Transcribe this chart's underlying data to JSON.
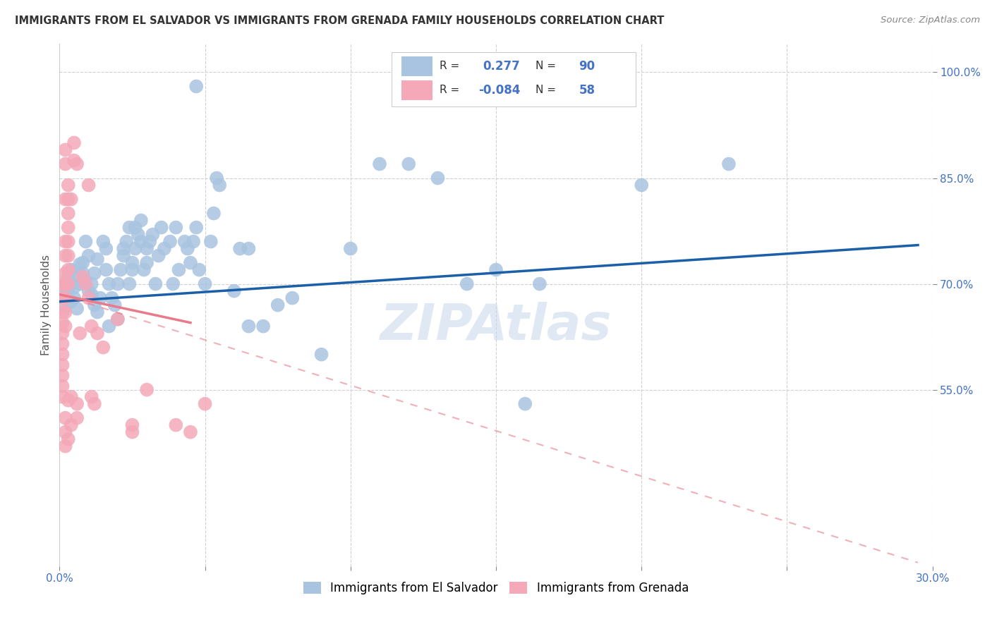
{
  "title": "IMMIGRANTS FROM EL SALVADOR VS IMMIGRANTS FROM GRENADA FAMILY HOUSEHOLDS CORRELATION CHART",
  "source": "Source: ZipAtlas.com",
  "ylabel": "Family Households",
  "xlim": [
    0.0,
    0.3
  ],
  "ylim": [
    0.3,
    1.04
  ],
  "el_salvador_color": "#a8c4e0",
  "el_salvador_line_color": "#1a5fa8",
  "grenada_color": "#f4a8b8",
  "grenada_line_color": "#e87a8a",
  "watermark": "ZIPAtlas",
  "background_color": "#ffffff",
  "grid_color": "#d0d0d0",
  "el_salvador_points": [
    [
      0.0015,
      0.685
    ],
    [
      0.002,
      0.668
    ],
    [
      0.002,
      0.7
    ],
    [
      0.003,
      0.71
    ],
    [
      0.003,
      0.693
    ],
    [
      0.004,
      0.72
    ],
    [
      0.004,
      0.675
    ],
    [
      0.005,
      0.695
    ],
    [
      0.005,
      0.68
    ],
    [
      0.006,
      0.665
    ],
    [
      0.006,
      0.71
    ],
    [
      0.007,
      0.7
    ],
    [
      0.007,
      0.728
    ],
    [
      0.008,
      0.715
    ],
    [
      0.008,
      0.73
    ],
    [
      0.009,
      0.705
    ],
    [
      0.009,
      0.76
    ],
    [
      0.01,
      0.74
    ],
    [
      0.01,
      0.69
    ],
    [
      0.011,
      0.685
    ],
    [
      0.011,
      0.7
    ],
    [
      0.012,
      0.715
    ],
    [
      0.012,
      0.67
    ],
    [
      0.013,
      0.735
    ],
    [
      0.013,
      0.66
    ],
    [
      0.014,
      0.68
    ],
    [
      0.015,
      0.76
    ],
    [
      0.016,
      0.72
    ],
    [
      0.016,
      0.75
    ],
    [
      0.017,
      0.7
    ],
    [
      0.017,
      0.64
    ],
    [
      0.018,
      0.68
    ],
    [
      0.019,
      0.67
    ],
    [
      0.02,
      0.65
    ],
    [
      0.02,
      0.7
    ],
    [
      0.021,
      0.72
    ],
    [
      0.022,
      0.74
    ],
    [
      0.022,
      0.75
    ],
    [
      0.023,
      0.76
    ],
    [
      0.024,
      0.78
    ],
    [
      0.024,
      0.7
    ],
    [
      0.025,
      0.73
    ],
    [
      0.025,
      0.72
    ],
    [
      0.026,
      0.75
    ],
    [
      0.026,
      0.78
    ],
    [
      0.027,
      0.77
    ],
    [
      0.028,
      0.76
    ],
    [
      0.028,
      0.79
    ],
    [
      0.029,
      0.72
    ],
    [
      0.03,
      0.73
    ],
    [
      0.03,
      0.75
    ],
    [
      0.031,
      0.76
    ],
    [
      0.032,
      0.77
    ],
    [
      0.033,
      0.7
    ],
    [
      0.034,
      0.74
    ],
    [
      0.035,
      0.78
    ],
    [
      0.036,
      0.75
    ],
    [
      0.038,
      0.76
    ],
    [
      0.039,
      0.7
    ],
    [
      0.04,
      0.78
    ],
    [
      0.041,
      0.72
    ],
    [
      0.043,
      0.76
    ],
    [
      0.044,
      0.75
    ],
    [
      0.045,
      0.73
    ],
    [
      0.046,
      0.76
    ],
    [
      0.047,
      0.78
    ],
    [
      0.048,
      0.72
    ],
    [
      0.05,
      0.7
    ],
    [
      0.052,
      0.76
    ],
    [
      0.053,
      0.8
    ],
    [
      0.054,
      0.85
    ],
    [
      0.055,
      0.84
    ],
    [
      0.06,
      0.69
    ],
    [
      0.062,
      0.75
    ],
    [
      0.065,
      0.75
    ],
    [
      0.065,
      0.64
    ],
    [
      0.07,
      0.64
    ],
    [
      0.075,
      0.67
    ],
    [
      0.08,
      0.68
    ],
    [
      0.09,
      0.6
    ],
    [
      0.1,
      0.75
    ],
    [
      0.11,
      0.87
    ],
    [
      0.12,
      0.87
    ],
    [
      0.13,
      0.85
    ],
    [
      0.14,
      0.7
    ],
    [
      0.15,
      0.72
    ],
    [
      0.16,
      0.53
    ],
    [
      0.165,
      0.7
    ],
    [
      0.2,
      0.84
    ],
    [
      0.23,
      0.87
    ],
    [
      0.047,
      0.98
    ]
  ],
  "grenada_points": [
    [
      0.001,
      0.7
    ],
    [
      0.001,
      0.68
    ],
    [
      0.001,
      0.66
    ],
    [
      0.001,
      0.645
    ],
    [
      0.001,
      0.63
    ],
    [
      0.001,
      0.615
    ],
    [
      0.001,
      0.6
    ],
    [
      0.001,
      0.585
    ],
    [
      0.001,
      0.57
    ],
    [
      0.001,
      0.555
    ],
    [
      0.001,
      0.54
    ],
    [
      0.002,
      0.89
    ],
    [
      0.002,
      0.87
    ],
    [
      0.002,
      0.82
    ],
    [
      0.002,
      0.76
    ],
    [
      0.002,
      0.74
    ],
    [
      0.002,
      0.715
    ],
    [
      0.002,
      0.7
    ],
    [
      0.002,
      0.68
    ],
    [
      0.002,
      0.66
    ],
    [
      0.002,
      0.64
    ],
    [
      0.002,
      0.51
    ],
    [
      0.002,
      0.49
    ],
    [
      0.002,
      0.47
    ],
    [
      0.003,
      0.84
    ],
    [
      0.003,
      0.82
    ],
    [
      0.003,
      0.8
    ],
    [
      0.003,
      0.78
    ],
    [
      0.003,
      0.76
    ],
    [
      0.003,
      0.74
    ],
    [
      0.003,
      0.72
    ],
    [
      0.003,
      0.7
    ],
    [
      0.003,
      0.535
    ],
    [
      0.004,
      0.82
    ],
    [
      0.004,
      0.54
    ],
    [
      0.005,
      0.9
    ],
    [
      0.005,
      0.875
    ],
    [
      0.006,
      0.87
    ],
    [
      0.006,
      0.53
    ],
    [
      0.006,
      0.51
    ],
    [
      0.007,
      0.63
    ],
    [
      0.008,
      0.71
    ],
    [
      0.009,
      0.7
    ],
    [
      0.01,
      0.84
    ],
    [
      0.01,
      0.68
    ],
    [
      0.011,
      0.64
    ],
    [
      0.011,
      0.54
    ],
    [
      0.012,
      0.53
    ],
    [
      0.013,
      0.63
    ],
    [
      0.015,
      0.61
    ],
    [
      0.02,
      0.65
    ],
    [
      0.025,
      0.5
    ],
    [
      0.025,
      0.49
    ],
    [
      0.03,
      0.55
    ],
    [
      0.04,
      0.5
    ],
    [
      0.045,
      0.49
    ],
    [
      0.05,
      0.53
    ],
    [
      0.003,
      0.48
    ],
    [
      0.004,
      0.5
    ]
  ],
  "el_salvador_line": {
    "x0": 0.0,
    "y0": 0.675,
    "x1": 0.295,
    "y1": 0.755
  },
  "grenada_solid_line": {
    "x0": 0.0,
    "y0": 0.685,
    "x1": 0.045,
    "y1": 0.645
  },
  "grenada_dashed_line": {
    "x0": 0.0,
    "y0": 0.685,
    "x1": 0.295,
    "y1": 0.305
  },
  "right_y_ticks": [
    0.55,
    0.7,
    0.85,
    1.0
  ],
  "right_y_labels": [
    "55.0%",
    "70.0%",
    "85.0%",
    "100.0%"
  ],
  "x_ticks": [
    0.0,
    0.05,
    0.1,
    0.15,
    0.2,
    0.25,
    0.3
  ],
  "x_labels": [
    "0.0%",
    "",
    "",
    "",
    "",
    "",
    "30.0%"
  ],
  "legend_r1_val": "0.277",
  "legend_r1_n": "90",
  "legend_r2_val": "-0.084",
  "legend_r2_n": "58"
}
